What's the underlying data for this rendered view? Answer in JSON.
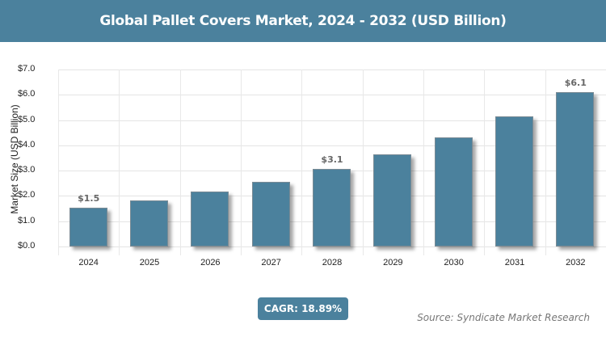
{
  "header": {
    "title": "Global Pallet Covers Market, 2024 - 2032 (USD Billion)"
  },
  "colors": {
    "bar": "#4b819d",
    "header": "#4b819d"
  },
  "chart_data": {
    "type": "bar",
    "title": "Global Pallet Covers Market, 2024 - 2032 (USD Billion)",
    "xlabel": "",
    "ylabel": "Market Size (USD Billion)",
    "categories": [
      "2024",
      "2025",
      "2026",
      "2027",
      "2028",
      "2029",
      "2030",
      "2031",
      "2032"
    ],
    "values": [
      1.53,
      1.82,
      2.16,
      2.57,
      3.06,
      3.64,
      4.32,
      5.14,
      6.11
    ],
    "data_labels": {
      "2024": "$1.5",
      "2028": "$3.1",
      "2032": "$6.1"
    },
    "ylim": [
      0,
      7
    ],
    "yticks": [
      "$0.0",
      "$1.0",
      "$2.0",
      "$3.0",
      "$4.0",
      "$5.0",
      "$6.0",
      "$7.0"
    ],
    "grid": true,
    "legend": null
  },
  "footer": {
    "cagr": "CAGR: 18.89%",
    "source": "Source: Syndicate Market Research"
  }
}
